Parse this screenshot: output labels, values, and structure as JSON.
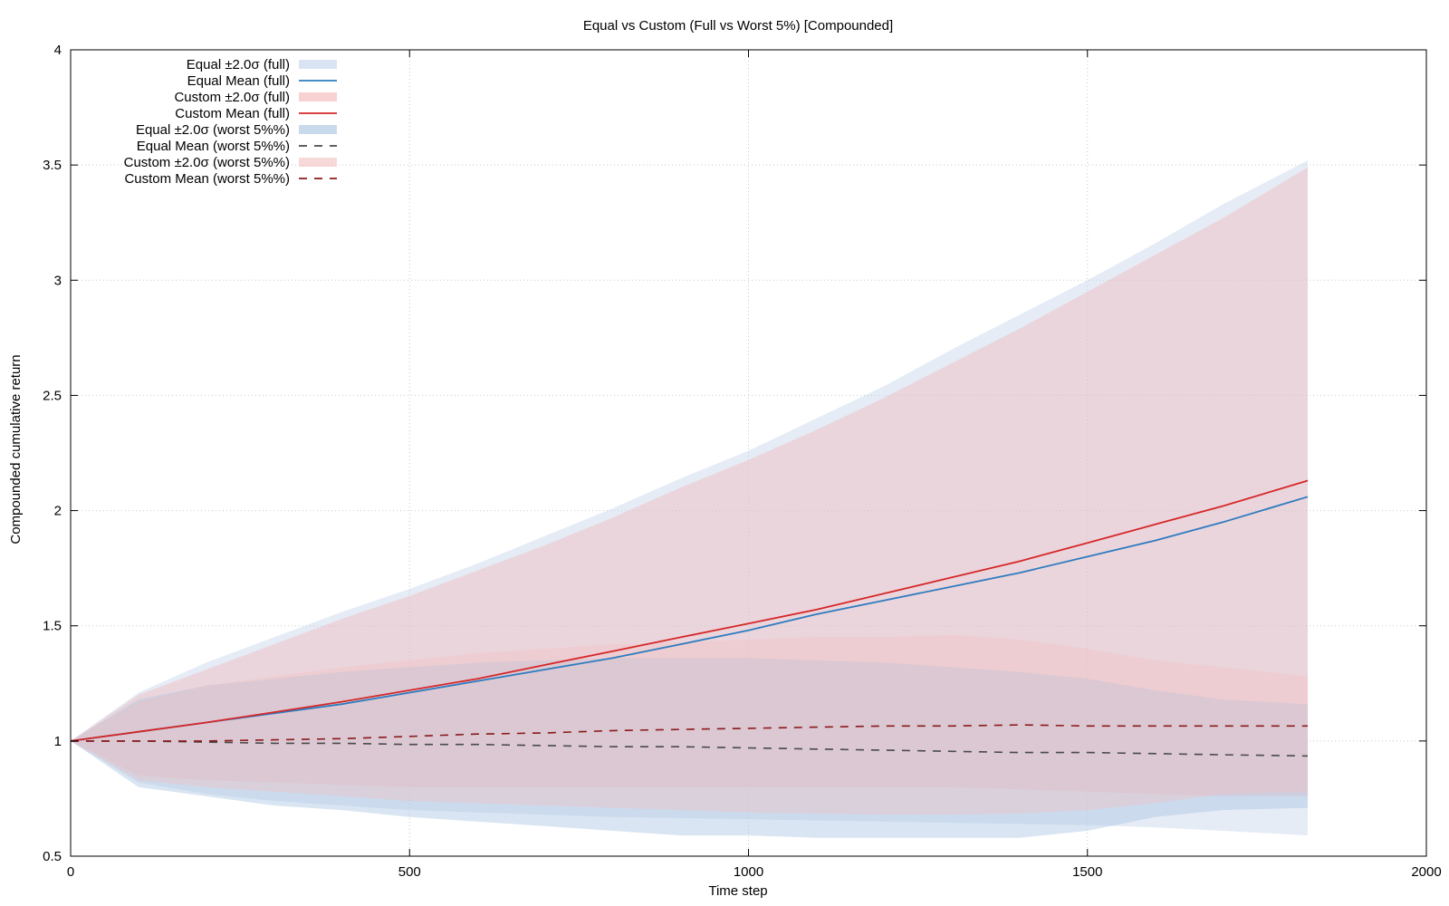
{
  "chart_data": {
    "type": "area",
    "title": "Equal vs Custom (Full vs Worst 5%) [Compounded]",
    "xlabel": "Time step",
    "ylabel": "Compounded cumulative return",
    "xlim": [
      0,
      2000
    ],
    "ylim": [
      0.5,
      4
    ],
    "xticks": [
      0,
      500,
      1000,
      1500,
      2000
    ],
    "yticks": [
      0.5,
      1,
      1.5,
      2,
      2.5,
      3,
      3.5,
      4
    ],
    "grid": true,
    "legend_position": "top-left",
    "x": [
      0,
      100,
      200,
      300,
      400,
      500,
      600,
      700,
      800,
      900,
      1000,
      1100,
      1200,
      1300,
      1400,
      1500,
      1600,
      1700,
      1825
    ],
    "series": [
      {
        "name": "Equal ±2.0σ (full)",
        "kind": "band",
        "color": "#c6d4ec",
        "opacity": 0.45,
        "lower": [
          1.0,
          0.82,
          0.77,
          0.74,
          0.72,
          0.7,
          0.69,
          0.68,
          0.67,
          0.665,
          0.66,
          0.655,
          0.65,
          0.645,
          0.64,
          0.635,
          0.625,
          0.61,
          0.59
        ],
        "upper": [
          1.0,
          1.21,
          1.34,
          1.45,
          1.56,
          1.66,
          1.77,
          1.89,
          2.01,
          2.14,
          2.26,
          2.4,
          2.54,
          2.7,
          2.85,
          3.0,
          3.16,
          3.33,
          3.52
        ]
      },
      {
        "name": "Equal Mean (full)",
        "kind": "line",
        "color": "#2e7bbf",
        "dashed": false,
        "values": [
          1.0,
          1.04,
          1.08,
          1.12,
          1.16,
          1.21,
          1.26,
          1.31,
          1.36,
          1.42,
          1.48,
          1.55,
          1.61,
          1.67,
          1.73,
          1.8,
          1.87,
          1.95,
          2.06
        ]
      },
      {
        "name": "Custom ±2.0σ (full)",
        "kind": "band",
        "color": "#f4b4b8",
        "opacity": 0.42,
        "lower": [
          1.0,
          0.85,
          0.83,
          0.82,
          0.81,
          0.8,
          0.8,
          0.8,
          0.8,
          0.8,
          0.8,
          0.8,
          0.8,
          0.8,
          0.79,
          0.78,
          0.77,
          0.76,
          0.76
        ],
        "upper": [
          1.0,
          1.2,
          1.31,
          1.42,
          1.53,
          1.63,
          1.74,
          1.85,
          1.97,
          2.1,
          2.22,
          2.35,
          2.49,
          2.64,
          2.79,
          2.95,
          3.11,
          3.27,
          3.49
        ]
      },
      {
        "name": "Custom Mean (full)",
        "kind": "line",
        "color": "#d62728",
        "dashed": false,
        "values": [
          1.0,
          1.04,
          1.08,
          1.125,
          1.17,
          1.22,
          1.27,
          1.33,
          1.39,
          1.45,
          1.51,
          1.57,
          1.64,
          1.71,
          1.78,
          1.86,
          1.94,
          2.02,
          2.13
        ]
      },
      {
        "name": "Equal ±2.0σ (worst 5%%)",
        "kind": "band",
        "color": "#aac6e2",
        "opacity": 0.45,
        "lower": [
          1.0,
          0.8,
          0.76,
          0.72,
          0.7,
          0.67,
          0.65,
          0.63,
          0.61,
          0.59,
          0.59,
          0.58,
          0.58,
          0.58,
          0.58,
          0.61,
          0.67,
          0.7,
          0.71
        ],
        "upper": [
          1.0,
          1.18,
          1.24,
          1.27,
          1.3,
          1.32,
          1.34,
          1.35,
          1.36,
          1.36,
          1.36,
          1.35,
          1.34,
          1.32,
          1.3,
          1.27,
          1.22,
          1.18,
          1.16
        ]
      },
      {
        "name": "Equal Mean (worst 5%%)",
        "kind": "line",
        "color": "#4a4a4a",
        "dashed": true,
        "values": [
          1.0,
          1.0,
          0.995,
          0.99,
          0.99,
          0.985,
          0.985,
          0.98,
          0.975,
          0.975,
          0.97,
          0.965,
          0.96,
          0.955,
          0.95,
          0.95,
          0.945,
          0.94,
          0.935
        ]
      },
      {
        "name": "Custom ±2.0σ (worst 5%%)",
        "kind": "band",
        "color": "#f1c0c0",
        "opacity": 0.4,
        "lower": [
          1.0,
          0.83,
          0.8,
          0.78,
          0.76,
          0.74,
          0.73,
          0.72,
          0.71,
          0.7,
          0.69,
          0.685,
          0.68,
          0.68,
          0.685,
          0.7,
          0.73,
          0.77,
          0.78
        ],
        "upper": [
          1.0,
          1.17,
          1.24,
          1.28,
          1.32,
          1.35,
          1.38,
          1.4,
          1.42,
          1.43,
          1.44,
          1.45,
          1.45,
          1.46,
          1.44,
          1.4,
          1.35,
          1.32,
          1.28
        ]
      },
      {
        "name": "Custom Mean (worst 5%%)",
        "kind": "line",
        "color": "#8b1a1a",
        "dashed": true,
        "values": [
          1.0,
          1.0,
          1.0,
          1.005,
          1.01,
          1.02,
          1.03,
          1.035,
          1.045,
          1.05,
          1.055,
          1.06,
          1.065,
          1.065,
          1.07,
          1.065,
          1.065,
          1.065,
          1.065
        ]
      }
    ]
  }
}
